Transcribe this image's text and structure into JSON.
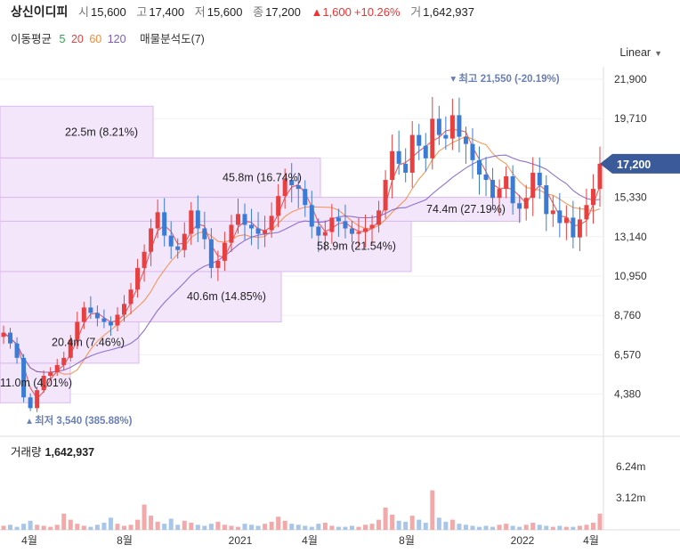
{
  "header": {
    "name": "상신이디피",
    "open_label": "시",
    "open": "15,600",
    "high_label": "고",
    "high": "17,400",
    "low_label": "저",
    "low": "15,600",
    "close_label": "종",
    "close": "17,200",
    "change": "▲1,600",
    "change_pct": "+10.26%",
    "vol_label": "거",
    "volume": "1,642,937"
  },
  "ma": {
    "label": "이동평균",
    "p5": "5",
    "p20": "20",
    "p60": "60",
    "p120": "120",
    "c5": "#2ba84a",
    "c20": "#e84040",
    "c60": "#f08a3c",
    "c120": "#7b5cc4",
    "profile_label": "매물분석도(7)"
  },
  "scale": "Linear",
  "volume_panel": {
    "label": "거래량",
    "value": "1,642,937",
    "ticks": [
      "6.24m",
      "3.12m"
    ]
  },
  "colors": {
    "up": "#e84040",
    "down": "#3a7bd5",
    "box": "#f3e6fb",
    "box_border": "#dcb8ef",
    "current": "#3b5a9a"
  },
  "chart_data": {
    "type": "candlestick",
    "y_ticks": [
      "21,900",
      "19,710",
      "17,520",
      "15,330",
      "13,140",
      "10,950",
      "8,760",
      "6,570",
      "4,380"
    ],
    "x_ticks": [
      "4월",
      "8월",
      "2021",
      "4월",
      "8월",
      "2022",
      "4월"
    ],
    "current_price": "17,200",
    "high_marker": "최고 21,550 (-20.19%)",
    "low_marker": "최저 3,540 (385.88%)",
    "volume_profile": [
      {
        "label": "22.5m (8.21%)",
        "low": 17520,
        "high": 20400
      },
      {
        "label": "45.8m (16.74%)",
        "low": 15330,
        "high": 17520
      },
      {
        "label": "74.4m (27.19%)",
        "low": 14000,
        "high": 15330
      },
      {
        "label": "58.9m (21.54%)",
        "low": 11200,
        "high": 14000
      },
      {
        "label": "40.6m (14.85%)",
        "low": 8400,
        "high": 11200
      },
      {
        "label": "20.4m (7.46%)",
        "low": 6100,
        "high": 8400
      },
      {
        "label": "11.0m (4.01%)",
        "low": 3900,
        "high": 6100
      }
    ],
    "close_series_approx": [
      7800,
      7200,
      6400,
      4200,
      3600,
      4600,
      5400,
      5600,
      6000,
      6400,
      7400,
      8400,
      9200,
      8900,
      8600,
      8400,
      8200,
      8800,
      9400,
      10200,
      11400,
      12300,
      13600,
      14500,
      13200,
      12600,
      12400,
      13300,
      14600,
      13600,
      13000,
      11400,
      11800,
      12800,
      13800,
      14400,
      13800,
      13600,
      13300,
      13500,
      14300,
      15400,
      16300,
      16000,
      15800,
      14900,
      13700,
      13200,
      13400,
      14200,
      14000,
      13600,
      13300,
      13400,
      13600,
      13800,
      14600,
      16300,
      17900,
      17200,
      16700,
      18800,
      18200,
      17500,
      19700,
      18800,
      18600,
      19900,
      18700,
      18300,
      17400,
      16600,
      16300,
      15300,
      15800,
      16500,
      15000,
      14700,
      15300,
      16700,
      16000,
      14400,
      14600,
      13900,
      14200,
      13100,
      14100,
      14900,
      15800,
      17200
    ],
    "volume_series_approx": [
      0.4,
      0.5,
      0.3,
      0.6,
      0.9,
      0.5,
      0.4,
      0.3,
      0.5,
      1.6,
      1.0,
      0.6,
      0.4,
      0.3,
      0.5,
      0.7,
      1.2,
      0.6,
      0.4,
      0.5,
      1.0,
      2.5,
      1.4,
      0.8,
      0.6,
      1.1,
      0.5,
      0.9,
      0.7,
      0.5,
      0.4,
      0.6,
      0.8,
      0.5,
      0.4,
      0.3,
      0.6,
      0.5,
      0.4,
      0.6,
      0.8,
      1.3,
      0.9,
      0.6,
      0.5,
      0.4,
      0.3,
      0.6,
      0.7,
      0.4,
      0.3,
      0.3,
      0.4,
      0.3,
      0.5,
      0.6,
      1.0,
      2.2,
      1.5,
      0.9,
      0.8,
      1.4,
      1.0,
      0.7,
      3.9,
      1.2,
      0.8,
      1.0,
      0.6,
      0.5,
      0.4,
      0.3,
      0.4,
      0.3,
      0.5,
      0.6,
      0.4,
      0.3,
      0.5,
      0.7,
      0.5,
      0.4,
      0.3,
      0.4,
      0.3,
      0.3,
      0.4,
      0.5,
      0.7,
      1.6
    ]
  }
}
